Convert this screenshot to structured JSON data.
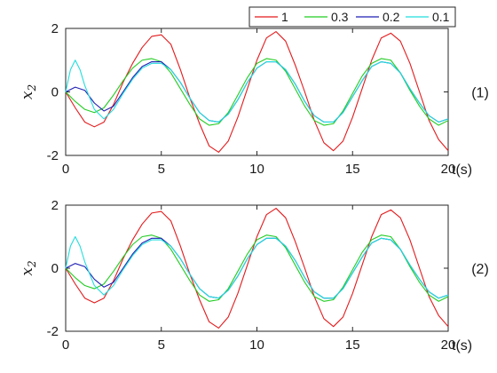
{
  "chart_data": {
    "type": "line",
    "legend": {
      "placement": "top-right",
      "entries": [
        {
          "label": "1",
          "color": "#e31a1c"
        },
        {
          "label": "0.3",
          "color": "#22cc22"
        },
        {
          "label": "0.2",
          "color": "#1f1fb4"
        },
        {
          "label": "0.1",
          "color": "#22dddd"
        }
      ]
    },
    "panels": [
      {
        "tag": "(1)",
        "ylabel_base": "x",
        "ylabel_sub": "2",
        "xlabel": "t(s)",
        "xlim": [
          0,
          20
        ],
        "ylim": [
          -2,
          2
        ],
        "xticks": [
          "0",
          "5",
          "10",
          "15",
          "20"
        ],
        "yticks": [
          "2",
          "0",
          "-2"
        ],
        "series": [
          {
            "name": "1",
            "color": "#e31a1c",
            "x": [
              0,
              0.5,
              1,
              1.5,
              2,
              2.5,
              3,
              3.5,
              4,
              4.5,
              5,
              5.5,
              6,
              6.5,
              7,
              7.5,
              8,
              8.5,
              9,
              9.5,
              10,
              10.5,
              11,
              11.5,
              12,
              12.5,
              13,
              13.5,
              14,
              14.5,
              15,
              15.5,
              16,
              16.5,
              17,
              17.5,
              18,
              18.5,
              19,
              19.5,
              20
            ],
            "y": [
              0,
              -0.5,
              -0.95,
              -1.1,
              -0.95,
              -0.4,
              0.3,
              0.9,
              1.4,
              1.75,
              1.8,
              1.5,
              0.7,
              -0.2,
              -1.0,
              -1.7,
              -1.9,
              -1.55,
              -0.8,
              0.1,
              1.0,
              1.7,
              1.9,
              1.6,
              0.85,
              0.0,
              -0.9,
              -1.6,
              -1.85,
              -1.55,
              -0.8,
              0.1,
              1.0,
              1.7,
              1.85,
              1.6,
              0.9,
              0.0,
              -0.9,
              -1.5,
              -1.85
            ]
          },
          {
            "name": "0.3",
            "color": "#22cc22",
            "x": [
              0,
              0.5,
              1,
              1.5,
              2,
              2.5,
              3,
              3.5,
              4,
              4.5,
              5,
              5.5,
              6,
              6.5,
              7,
              7.5,
              8,
              8.5,
              9,
              9.5,
              10,
              10.5,
              11,
              11.5,
              12,
              12.5,
              13,
              13.5,
              14,
              14.5,
              15,
              15.5,
              16,
              16.5,
              17,
              17.5,
              18,
              18.5,
              19,
              19.5,
              20
            ],
            "y": [
              0,
              -0.3,
              -0.55,
              -0.65,
              -0.5,
              -0.1,
              0.35,
              0.75,
              1.0,
              1.05,
              0.95,
              0.6,
              0.1,
              -0.4,
              -0.85,
              -1.05,
              -1.0,
              -0.65,
              -0.1,
              0.45,
              0.9,
              1.05,
              1.0,
              0.65,
              0.1,
              -0.45,
              -0.9,
              -1.05,
              -1.0,
              -0.6,
              -0.05,
              0.5,
              0.9,
              1.05,
              1.0,
              0.6,
              0.05,
              -0.45,
              -0.85,
              -1.05,
              -0.9
            ]
          },
          {
            "name": "0.2",
            "color": "#1f1fb4",
            "x": [
              0,
              0.5,
              1,
              1.5,
              2,
              2.5,
              3,
              3.5,
              4,
              4.5,
              5,
              5.5,
              6,
              6.5,
              7,
              7.5,
              8,
              8.5,
              9,
              9.5,
              10,
              10.5,
              11,
              11.5,
              12,
              12.5,
              13,
              13.5,
              14,
              14.5,
              15,
              15.5,
              16,
              16.5,
              17,
              17.5,
              18,
              18.5,
              19,
              19.5,
              20
            ],
            "y": [
              0,
              0.15,
              0.05,
              -0.35,
              -0.6,
              -0.45,
              0.0,
              0.45,
              0.8,
              0.95,
              0.95,
              0.7,
              0.3,
              -0.2,
              -0.65,
              -0.9,
              -0.95,
              -0.7,
              -0.25,
              0.3,
              0.75,
              0.95,
              0.95,
              0.7,
              0.25,
              -0.3,
              -0.75,
              -0.95,
              -0.95,
              -0.65,
              -0.15,
              0.35,
              0.8,
              0.95,
              0.9,
              0.6,
              0.1,
              -0.35,
              -0.75,
              -0.95,
              -0.85
            ]
          },
          {
            "name": "0.1",
            "color": "#22dddd",
            "x": [
              0,
              0.25,
              0.5,
              0.75,
              1,
              1.5,
              2,
              2.5,
              3,
              3.5,
              4,
              4.5,
              5,
              5.5,
              6,
              6.5,
              7,
              7.5,
              8,
              8.5,
              9,
              9.5,
              10,
              10.5,
              11,
              11.5,
              12,
              12.5,
              13,
              13.5,
              14,
              14.5,
              15,
              15.5,
              16,
              16.5,
              17,
              17.5,
              18,
              18.5,
              19,
              19.5,
              20
            ],
            "y": [
              0,
              0.7,
              1.0,
              0.7,
              0.2,
              -0.55,
              -0.85,
              -0.55,
              -0.05,
              0.4,
              0.75,
              0.9,
              0.9,
              0.7,
              0.3,
              -0.2,
              -0.65,
              -0.9,
              -0.95,
              -0.7,
              -0.25,
              0.3,
              0.75,
              0.95,
              0.95,
              0.7,
              0.25,
              -0.3,
              -0.75,
              -0.95,
              -0.95,
              -0.65,
              -0.15,
              0.35,
              0.8,
              0.95,
              0.9,
              0.6,
              0.1,
              -0.35,
              -0.75,
              -0.95,
              -0.85
            ]
          }
        ]
      },
      {
        "tag": "(2)",
        "ylabel_base": "x",
        "ylabel_sub": "2",
        "xlabel": "t(s)",
        "xlim": [
          0,
          20
        ],
        "ylim": [
          -2,
          2
        ],
        "xticks": [
          "0",
          "5",
          "10",
          "15",
          "20"
        ],
        "yticks": [
          "2",
          "0",
          "-2"
        ],
        "series": [
          {
            "name": "1",
            "color": "#e31a1c",
            "x": [
              0,
              0.5,
              1,
              1.5,
              2,
              2.5,
              3,
              3.5,
              4,
              4.5,
              5,
              5.5,
              6,
              6.5,
              7,
              7.5,
              8,
              8.5,
              9,
              9.5,
              10,
              10.5,
              11,
              11.5,
              12,
              12.5,
              13,
              13.5,
              14,
              14.5,
              15,
              15.5,
              16,
              16.5,
              17,
              17.5,
              18,
              18.5,
              19,
              19.5,
              20
            ],
            "y": [
              0,
              -0.5,
              -0.95,
              -1.1,
              -0.95,
              -0.4,
              0.3,
              0.9,
              1.4,
              1.75,
              1.8,
              1.5,
              0.7,
              -0.2,
              -1.0,
              -1.7,
              -1.9,
              -1.55,
              -0.8,
              0.1,
              1.0,
              1.7,
              1.9,
              1.6,
              0.85,
              0.0,
              -0.9,
              -1.6,
              -1.85,
              -1.55,
              -0.8,
              0.1,
              1.0,
              1.7,
              1.85,
              1.6,
              0.9,
              0.0,
              -0.9,
              -1.5,
              -1.85
            ]
          },
          {
            "name": "0.3",
            "color": "#22cc22",
            "x": [
              0,
              0.5,
              1,
              1.5,
              2,
              2.5,
              3,
              3.5,
              4,
              4.5,
              5,
              5.5,
              6,
              6.5,
              7,
              7.5,
              8,
              8.5,
              9,
              9.5,
              10,
              10.5,
              11,
              11.5,
              12,
              12.5,
              13,
              13.5,
              14,
              14.5,
              15,
              15.5,
              16,
              16.5,
              17,
              17.5,
              18,
              18.5,
              19,
              19.5,
              20
            ],
            "y": [
              0,
              -0.3,
              -0.55,
              -0.65,
              -0.5,
              -0.1,
              0.35,
              0.75,
              1.0,
              1.05,
              0.95,
              0.6,
              0.1,
              -0.4,
              -0.85,
              -1.05,
              -1.0,
              -0.65,
              -0.1,
              0.45,
              0.9,
              1.05,
              1.0,
              0.65,
              0.1,
              -0.45,
              -0.9,
              -1.05,
              -1.0,
              -0.6,
              -0.05,
              0.5,
              0.9,
              1.05,
              1.0,
              0.6,
              0.05,
              -0.45,
              -0.85,
              -1.05,
              -0.9
            ]
          },
          {
            "name": "0.2",
            "color": "#1f1fb4",
            "x": [
              0,
              0.5,
              1,
              1.5,
              2,
              2.5,
              3,
              3.5,
              4,
              4.5,
              5,
              5.5,
              6,
              6.5,
              7,
              7.5,
              8,
              8.5,
              9,
              9.5,
              10,
              10.5,
              11,
              11.5,
              12,
              12.5,
              13,
              13.5,
              14,
              14.5,
              15,
              15.5,
              16,
              16.5,
              17,
              17.5,
              18,
              18.5,
              19,
              19.5,
              20
            ],
            "y": [
              0,
              0.15,
              0.05,
              -0.35,
              -0.6,
              -0.45,
              0.0,
              0.45,
              0.8,
              0.95,
              0.95,
              0.7,
              0.3,
              -0.2,
              -0.65,
              -0.9,
              -0.95,
              -0.7,
              -0.25,
              0.3,
              0.75,
              0.95,
              0.95,
              0.7,
              0.25,
              -0.3,
              -0.75,
              -0.95,
              -0.95,
              -0.65,
              -0.15,
              0.35,
              0.8,
              0.95,
              0.9,
              0.6,
              0.1,
              -0.35,
              -0.75,
              -0.95,
              -0.85
            ]
          },
          {
            "name": "0.1",
            "color": "#22dddd",
            "x": [
              0,
              0.25,
              0.5,
              0.75,
              1,
              1.5,
              2,
              2.5,
              3,
              3.5,
              4,
              4.5,
              5,
              5.5,
              6,
              6.5,
              7,
              7.5,
              8,
              8.5,
              9,
              9.5,
              10,
              10.5,
              11,
              11.5,
              12,
              12.5,
              13,
              13.5,
              14,
              14.5,
              15,
              15.5,
              16,
              16.5,
              17,
              17.5,
              18,
              18.5,
              19,
              19.5,
              20
            ],
            "y": [
              0,
              0.7,
              1.0,
              0.7,
              0.2,
              -0.55,
              -0.85,
              -0.55,
              -0.05,
              0.4,
              0.75,
              0.9,
              0.9,
              0.7,
              0.3,
              -0.2,
              -0.65,
              -0.9,
              -0.95,
              -0.7,
              -0.25,
              0.3,
              0.75,
              0.95,
              0.95,
              0.7,
              0.25,
              -0.3,
              -0.75,
              -0.95,
              -0.95,
              -0.65,
              -0.15,
              0.35,
              0.8,
              0.95,
              0.9,
              0.6,
              0.1,
              -0.35,
              -0.75,
              -0.95,
              -0.85
            ]
          }
        ]
      }
    ]
  }
}
